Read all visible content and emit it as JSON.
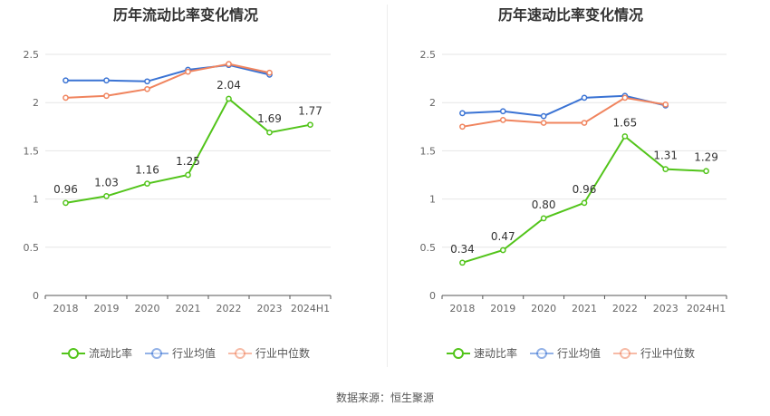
{
  "footer": {
    "source_label": "数据来源：恒生聚源"
  },
  "chart_data": [
    {
      "type": "line",
      "title": "历年流动比率变化情况",
      "xlabel": "",
      "ylabel": "",
      "categories": [
        "2018",
        "2019",
        "2020",
        "2021",
        "2022",
        "2023",
        "2024H1"
      ],
      "ylim": [
        0,
        2.5
      ],
      "yticks": [
        "0",
        "0.5",
        "1",
        "1.5",
        "2",
        "2.5"
      ],
      "grid": true,
      "legend_position": "bottom",
      "series": [
        {
          "name": "流动比率",
          "color": "#52c41a",
          "values": [
            0.96,
            1.03,
            1.16,
            1.25,
            2.04,
            1.69,
            1.77
          ],
          "labels": [
            "0.96",
            "1.03",
            "1.16",
            "1.25",
            "2.04",
            "1.69",
            "1.77"
          ]
        },
        {
          "name": "行业均值",
          "color": "#3a73d4",
          "values": [
            2.23,
            2.23,
            2.22,
            2.34,
            2.39,
            2.29,
            null
          ]
        },
        {
          "name": "行业中位数",
          "color": "#f0845e",
          "values": [
            2.05,
            2.07,
            2.14,
            2.32,
            2.4,
            2.31,
            null
          ]
        }
      ]
    },
    {
      "type": "line",
      "title": "历年速动比率变化情况",
      "xlabel": "",
      "ylabel": "",
      "categories": [
        "2018",
        "2019",
        "2020",
        "2021",
        "2022",
        "2023",
        "2024H1"
      ],
      "ylim": [
        0,
        2.5
      ],
      "yticks": [
        "0",
        "0.5",
        "1",
        "1.5",
        "2",
        "2.5"
      ],
      "grid": true,
      "legend_position": "bottom",
      "series": [
        {
          "name": "速动比率",
          "color": "#52c41a",
          "values": [
            0.34,
            0.47,
            0.8,
            0.96,
            1.65,
            1.31,
            1.29
          ],
          "labels": [
            "0.34",
            "0.47",
            "0.80",
            "0.96",
            "1.65",
            "1.31",
            "1.29"
          ]
        },
        {
          "name": "行业均值",
          "color": "#3a73d4",
          "values": [
            1.89,
            1.91,
            1.86,
            2.05,
            2.07,
            1.97,
            null
          ]
        },
        {
          "name": "行业中位数",
          "color": "#f0845e",
          "values": [
            1.75,
            1.82,
            1.79,
            1.79,
            2.05,
            1.98,
            null
          ]
        }
      ]
    }
  ]
}
